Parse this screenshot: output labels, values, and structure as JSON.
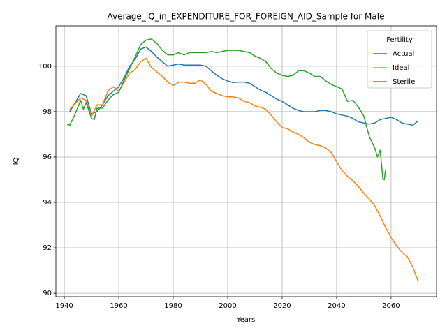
{
  "chart_data": {
    "type": "line",
    "title": "Average_IQ_in_EXPENDITURE_FOR_FOREIGN_AID_Sample for Male",
    "xlabel": "Years",
    "ylabel": "IQ",
    "legend_title": "Fertility",
    "legend": "upper right",
    "grid": true,
    "xlim": [
      1936.9,
      2076.7
    ],
    "ylim": [
      89.85,
      101.78
    ],
    "xticks": [
      1940,
      1960,
      1980,
      2000,
      2020,
      2040,
      2060
    ],
    "yticks": [
      90,
      92,
      94,
      96,
      98,
      100
    ],
    "series": [
      {
        "name": "Actual",
        "color": "#1f77b4",
        "x": [
          1942,
          1944,
          1946,
          1948,
          1950,
          1952,
          1954,
          1956,
          1958,
          1960,
          1962,
          1964,
          1966,
          1968,
          1970,
          1972,
          1974,
          1976,
          1978,
          1980,
          1982,
          1984,
          1986,
          1988,
          1990,
          1992,
          1994,
          1996,
          1998,
          2000,
          2002,
          2004,
          2006,
          2008,
          2010,
          2012,
          2014,
          2016,
          2018,
          2020,
          2022,
          2024,
          2026,
          2028,
          2030,
          2032,
          2034,
          2036,
          2038,
          2040,
          2042,
          2044,
          2046,
          2048,
          2050,
          2052,
          2054,
          2056,
          2058,
          2060,
          2062,
          2064,
          2066,
          2068,
          2070
        ],
        "values": [
          98.0,
          98.4,
          98.8,
          98.7,
          97.9,
          98.0,
          98.3,
          98.7,
          98.9,
          99.1,
          99.5,
          100.0,
          100.3,
          100.75,
          100.85,
          100.65,
          100.4,
          100.2,
          100.0,
          100.05,
          100.1,
          100.05,
          100.05,
          100.05,
          100.05,
          100.0,
          99.8,
          99.6,
          99.45,
          99.35,
          99.28,
          99.3,
          99.3,
          99.25,
          99.1,
          98.95,
          98.85,
          98.7,
          98.55,
          98.45,
          98.3,
          98.15,
          98.05,
          98.0,
          98.0,
          98.0,
          98.05,
          98.05,
          98.0,
          97.9,
          97.85,
          97.8,
          97.7,
          97.55,
          97.5,
          97.45,
          97.5,
          97.65,
          97.7,
          97.75,
          97.65,
          97.5,
          97.45,
          97.4,
          97.6
        ]
      },
      {
        "name": "Ideal",
        "color": "#ff7f0e",
        "x": [
          1942,
          1944,
          1946,
          1948,
          1950,
          1952,
          1954,
          1956,
          1958,
          1960,
          1962,
          1964,
          1966,
          1968,
          1970,
          1972,
          1974,
          1976,
          1978,
          1980,
          1982,
          1984,
          1986,
          1988,
          1990,
          1992,
          1994,
          1996,
          1998,
          2000,
          2002,
          2004,
          2006,
          2008,
          2010,
          2012,
          2014,
          2016,
          2018,
          2020,
          2022,
          2024,
          2026,
          2028,
          2030,
          2032,
          2034,
          2036,
          2038,
          2040,
          2042,
          2044,
          2046,
          2048,
          2050,
          2052,
          2054,
          2056,
          2058,
          2060,
          2062,
          2064,
          2066,
          2068,
          2070
        ],
        "values": [
          98.1,
          98.35,
          98.6,
          98.5,
          97.8,
          98.3,
          98.3,
          98.9,
          99.1,
          98.9,
          99.3,
          99.7,
          99.85,
          100.2,
          100.35,
          99.95,
          99.75,
          99.55,
          99.3,
          99.15,
          99.3,
          99.3,
          99.25,
          99.25,
          99.4,
          99.2,
          98.9,
          98.8,
          98.7,
          98.65,
          98.65,
          98.6,
          98.45,
          98.4,
          98.25,
          98.2,
          98.1,
          97.85,
          97.55,
          97.3,
          97.25,
          97.1,
          97.0,
          96.85,
          96.65,
          96.55,
          96.5,
          96.4,
          96.2,
          95.8,
          95.4,
          95.15,
          94.95,
          94.7,
          94.4,
          94.15,
          93.85,
          93.4,
          92.9,
          92.45,
          92.1,
          91.8,
          91.6,
          91.15,
          90.5
        ]
      },
      {
        "name": "Sterile",
        "color": "#2ca02c",
        "x": [
          1941,
          1942,
          1944,
          1946,
          1947,
          1948,
          1950,
          1951,
          1952,
          1954,
          1956,
          1958,
          1960,
          1962,
          1964,
          1966,
          1968,
          1970,
          1972,
          1974,
          1976,
          1978,
          1980,
          1982,
          1984,
          1986,
          1988,
          1990,
          1992,
          1994,
          1996,
          1998,
          2000,
          2002,
          2004,
          2006,
          2008,
          2010,
          2012,
          2014,
          2016,
          2018,
          2020,
          2022,
          2024,
          2026,
          2028,
          2030,
          2032,
          2034,
          2036,
          2038,
          2040,
          2042,
          2044,
          2046,
          2048,
          2050,
          2052,
          2054,
          2055,
          2056,
          2057,
          2057.5,
          2058
        ],
        "values": [
          97.45,
          97.4,
          97.9,
          98.5,
          98.1,
          98.4,
          97.7,
          97.65,
          98.15,
          98.15,
          98.5,
          98.75,
          98.85,
          99.4,
          99.9,
          100.4,
          100.95,
          101.15,
          101.2,
          101.0,
          100.7,
          100.5,
          100.5,
          100.6,
          100.5,
          100.6,
          100.6,
          100.6,
          100.6,
          100.65,
          100.6,
          100.65,
          100.7,
          100.7,
          100.7,
          100.65,
          100.6,
          100.45,
          100.35,
          100.2,
          99.9,
          99.7,
          99.6,
          99.55,
          99.6,
          99.8,
          99.8,
          99.7,
          99.55,
          99.55,
          99.35,
          99.2,
          99.1,
          99.0,
          98.45,
          98.5,
          98.2,
          97.8,
          96.9,
          96.4,
          96.0,
          96.3,
          95.05,
          95.0,
          95.45
        ]
      }
    ]
  }
}
